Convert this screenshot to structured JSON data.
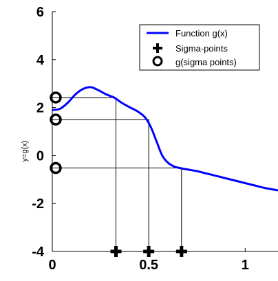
{
  "chart_data": {
    "type": "line",
    "title": "",
    "xlabel": "",
    "ylabel": "y=g(x)",
    "xlim": [
      0,
      1.17
    ],
    "ylim": [
      -4,
      6
    ],
    "x_ticks": [
      0,
      0.5,
      1
    ],
    "x_tick_labels": [
      "0",
      "0.5",
      "1"
    ],
    "y_ticks": [
      -4,
      -2,
      0,
      2,
      4,
      6
    ],
    "y_tick_labels": [
      "-4",
      "-2",
      "0",
      "2",
      "4",
      "6"
    ],
    "grid": false,
    "legend_position": "top-right",
    "legend": [
      "Function g(x)",
      "Sigma-points",
      "g(sigma points)"
    ],
    "series": [
      {
        "name": "Function g(x)",
        "color": "#0000ff",
        "x": [
          0,
          0.04,
          0.08,
          0.12,
          0.16,
          0.2,
          0.24,
          0.28,
          0.32,
          0.36,
          0.4,
          0.44,
          0.48,
          0.51,
          0.54,
          0.57,
          0.6,
          0.63,
          0.66,
          0.7,
          0.75,
          0.8,
          0.85,
          0.9,
          0.95,
          1.0,
          1.05,
          1.1,
          1.17
        ],
        "y": [
          1.9,
          1.95,
          2.2,
          2.55,
          2.78,
          2.85,
          2.72,
          2.55,
          2.42,
          2.2,
          2.02,
          1.85,
          1.6,
          1.2,
          0.6,
          0.0,
          -0.3,
          -0.45,
          -0.52,
          -0.58,
          -0.65,
          -0.75,
          -0.85,
          -0.95,
          -1.05,
          -1.15,
          -1.25,
          -1.35,
          -1.45
        ]
      }
    ],
    "sigma_points": {
      "name": "Sigma-points",
      "x": [
        0.33,
        0.5,
        0.67
      ],
      "y": -4
    },
    "g_sigma_points": {
      "name": "g(sigma points)",
      "x": 0,
      "y": [
        2.42,
        1.5,
        -0.52
      ]
    }
  }
}
